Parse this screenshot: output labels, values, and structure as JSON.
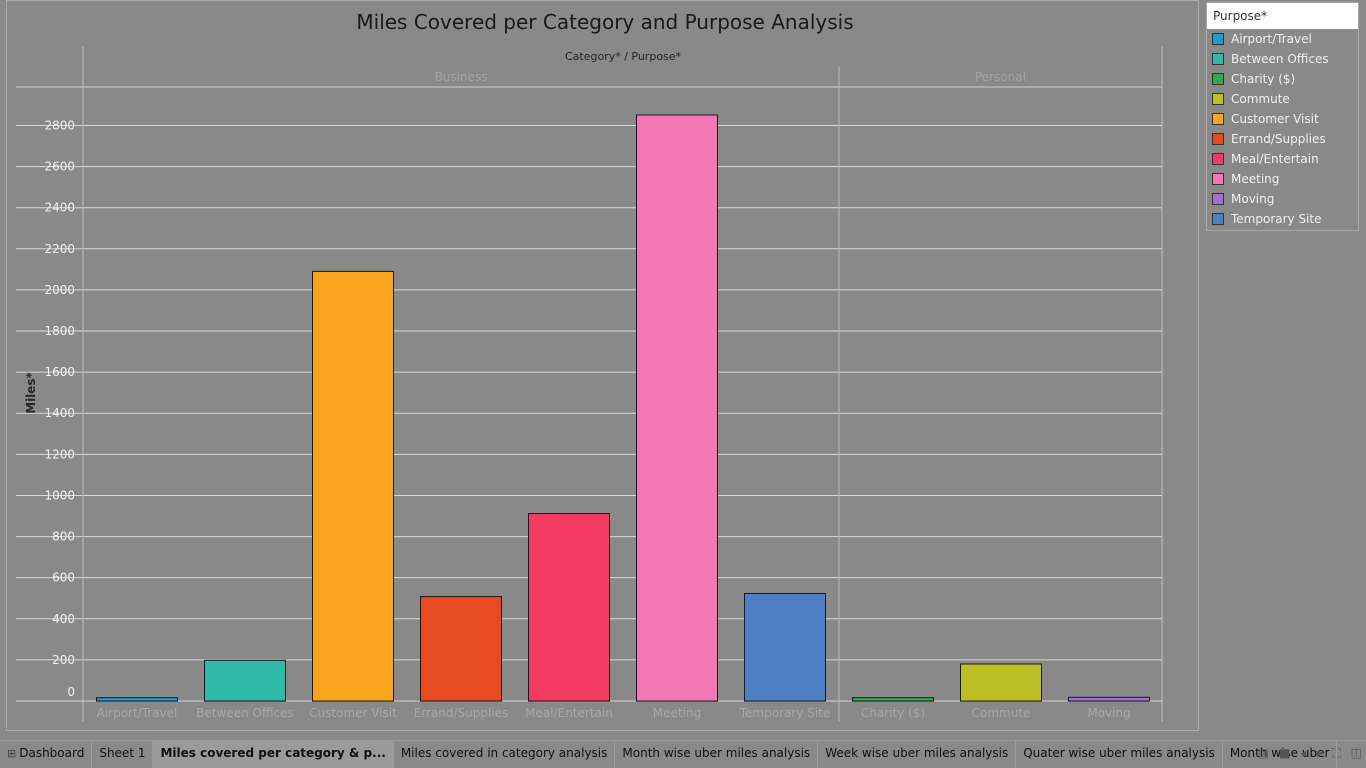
{
  "chart_data": {
    "type": "bar",
    "title": "Miles Covered per Category and Purpose Analysis",
    "header": "Category* / Purpose*",
    "ylabel": "Miles*",
    "ylim": [
      0,
      2900
    ],
    "yticks": [
      0,
      200,
      400,
      600,
      800,
      1000,
      1200,
      1400,
      1600,
      1800,
      2000,
      2200,
      2400,
      2600,
      2800
    ],
    "groups": [
      {
        "name": "Business",
        "bars": [
          {
            "category": "Airport/Travel",
            "value": 16
          },
          {
            "category": "Between Offices",
            "value": 198
          },
          {
            "category": "Customer Visit",
            "value": 2090
          },
          {
            "category": "Errand/Supplies",
            "value": 508
          },
          {
            "category": "Meal/Entertain",
            "value": 912
          },
          {
            "category": "Meeting",
            "value": 2851
          },
          {
            "category": "Temporary Site",
            "value": 523
          }
        ]
      },
      {
        "name": "Personal",
        "bars": [
          {
            "category": "Charity ($)",
            "value": 16
          },
          {
            "category": "Commute",
            "value": 180
          },
          {
            "category": "Moving",
            "value": 18
          }
        ]
      }
    ],
    "legend_placement": "top-right",
    "grid": true
  },
  "legend": {
    "title": "Purpose*",
    "items": [
      {
        "label": "Airport/Travel",
        "color": "#1f9bd0"
      },
      {
        "label": "Between Offices",
        "color": "#2fbaa9"
      },
      {
        "label": "Charity ($)",
        "color": "#33a853"
      },
      {
        "label": "Commute",
        "color": "#bdbf24"
      },
      {
        "label": "Customer Visit",
        "color": "#f8a51d"
      },
      {
        "label": "Errand/Supplies",
        "color": "#e84b22"
      },
      {
        "label": "Meal/Entertain",
        "color": "#f43a63"
      },
      {
        "label": "Meeting",
        "color": "#f277b4"
      },
      {
        "label": "Moving",
        "color": "#a571d1"
      },
      {
        "label": "Temporary Site",
        "color": "#4e7fc4"
      }
    ]
  },
  "tabs": [
    {
      "label": "Dashboard",
      "icon": "dashboard-grid-icon",
      "active": false
    },
    {
      "label": "Sheet 1",
      "active": false
    },
    {
      "label": "Miles covered per category & p...",
      "active": true
    },
    {
      "label": "Miles covered in category analysis",
      "active": false
    },
    {
      "label": "Month wise uber miles analysis",
      "active": false
    },
    {
      "label": "Week wise uber miles analysis",
      "active": false
    },
    {
      "label": "Quater wise uber miles analysis",
      "active": false
    },
    {
      "label": "Month wise uber",
      "active": false
    }
  ],
  "tab_controls": {
    "icons": [
      "filmstrip-icon",
      "sheet-sorter-icon",
      "prev-sheet-icon",
      "next-sheet-icon",
      "fullscreen-icon",
      "presentation-icon"
    ]
  }
}
